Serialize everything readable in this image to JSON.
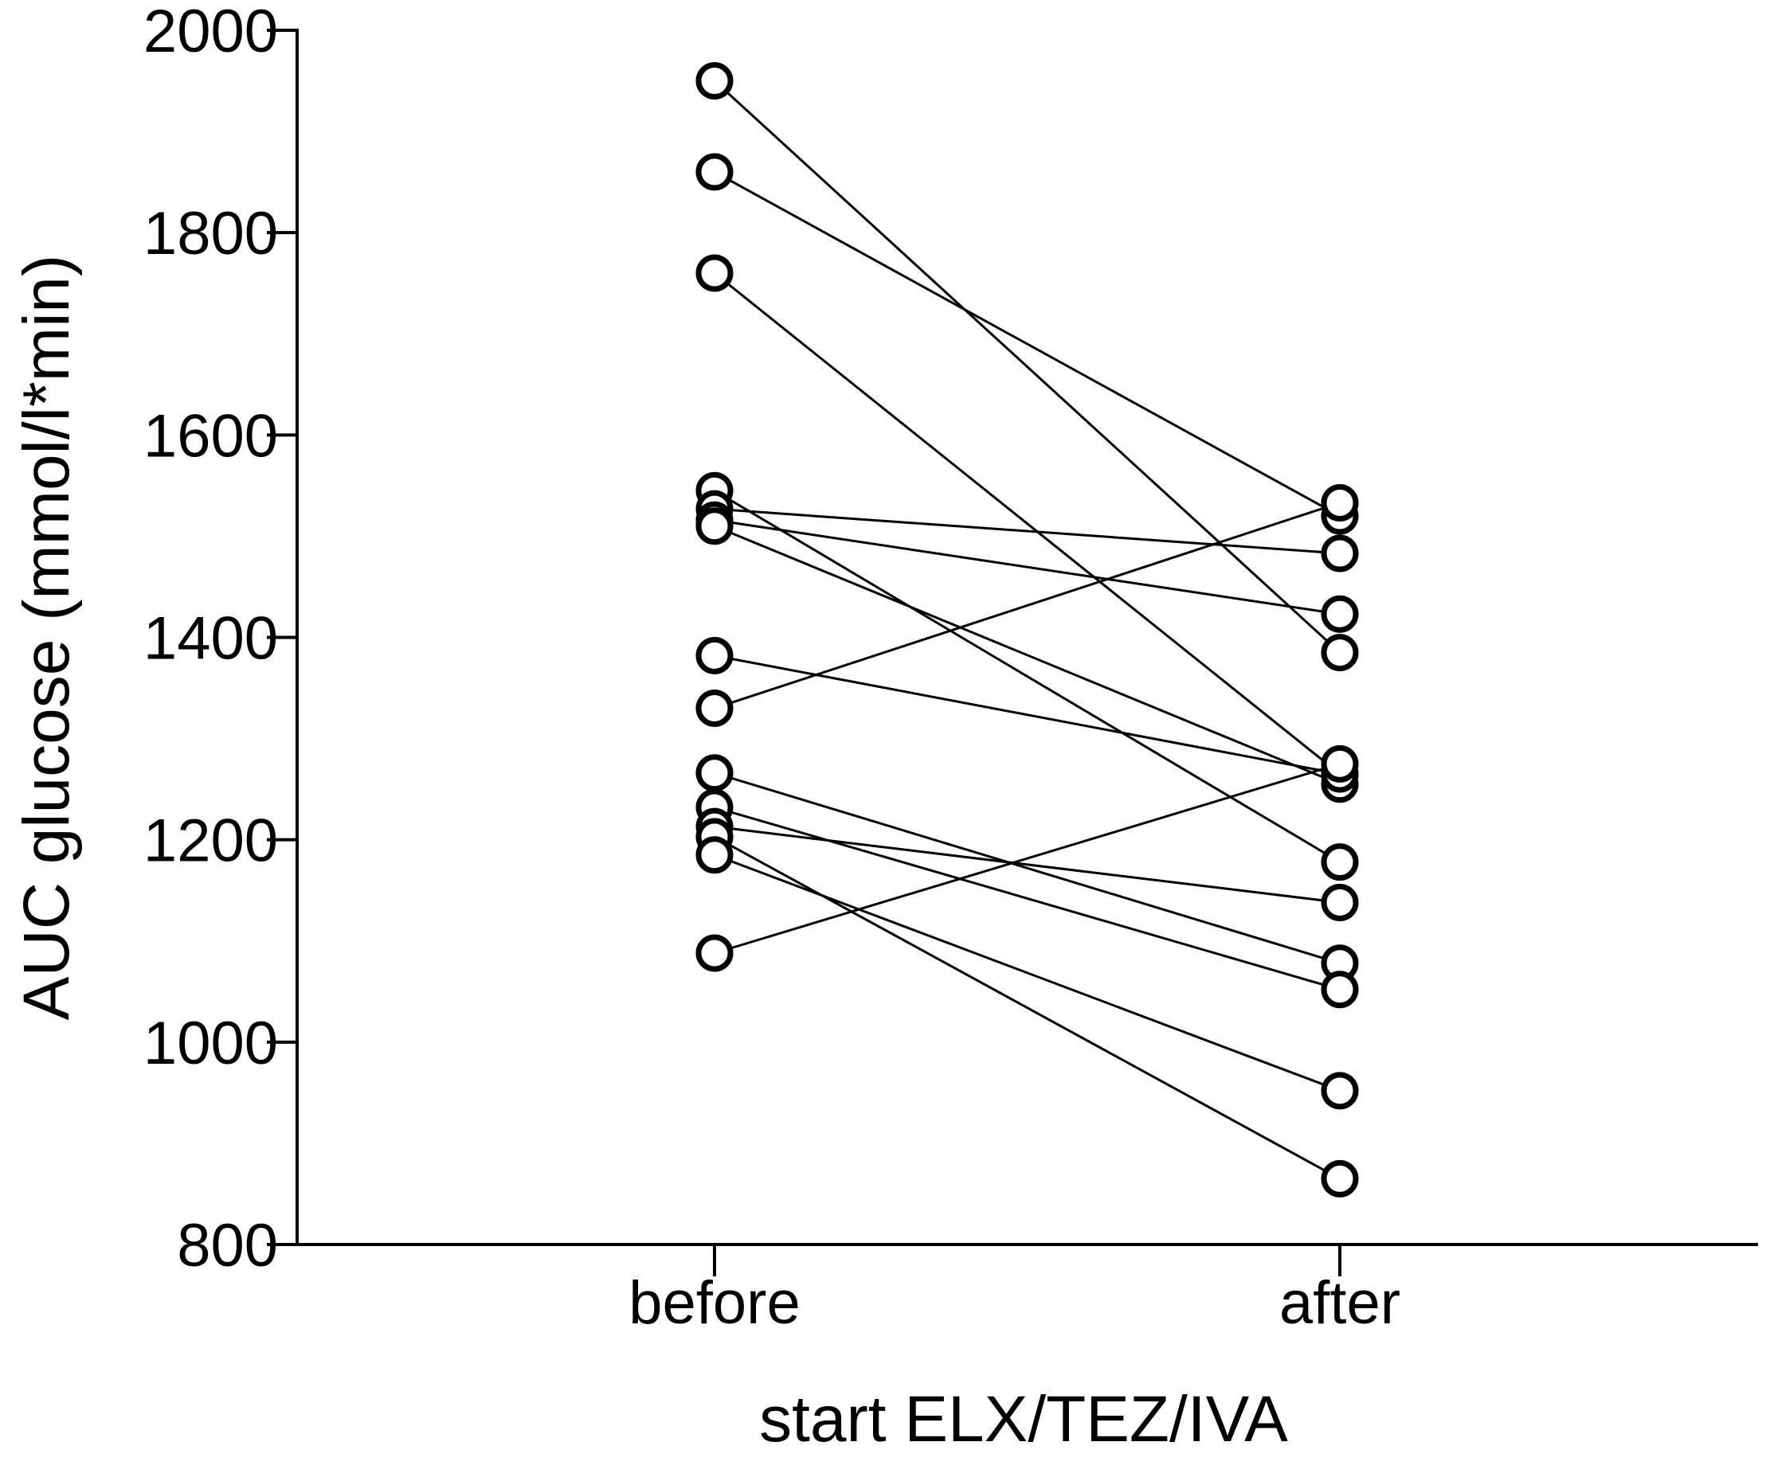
{
  "chart_data": {
    "type": "scatter",
    "subtype": "paired-before-after",
    "title": "",
    "ylabel": "AUC glucose (mmol/l*min)",
    "xlabel": "start ELX/TEZ/IVA",
    "categories": [
      "before",
      "after"
    ],
    "ylim": [
      800,
      2000
    ],
    "yticks": [
      800,
      1000,
      1200,
      1400,
      1600,
      1800,
      2000
    ],
    "ytick_labels": [
      "800",
      "1000",
      "1200",
      "1400",
      "1600",
      "1800",
      "2000"
    ],
    "grid": false,
    "legend": "none",
    "marker": "open-circle",
    "line_color": "#000000",
    "pairs": [
      {
        "before": 1950,
        "after": 1385
      },
      {
        "before": 1860,
        "after": 1520
      },
      {
        "before": 1760,
        "after": 1265
      },
      {
        "before": 1545,
        "after": 1178
      },
      {
        "before": 1527,
        "after": 1483
      },
      {
        "before": 1516,
        "after": 1423
      },
      {
        "before": 1510,
        "after": 1255
      },
      {
        "before": 1382,
        "after": 1265
      },
      {
        "before": 1330,
        "after": 1533
      },
      {
        "before": 1266,
        "after": 1078
      },
      {
        "before": 1232,
        "after": 1052
      },
      {
        "before": 1213,
        "after": 1138
      },
      {
        "before": 1203,
        "after": 865
      },
      {
        "before": 1185,
        "after": 952
      },
      {
        "before": 1088,
        "after": 1275
      }
    ]
  }
}
